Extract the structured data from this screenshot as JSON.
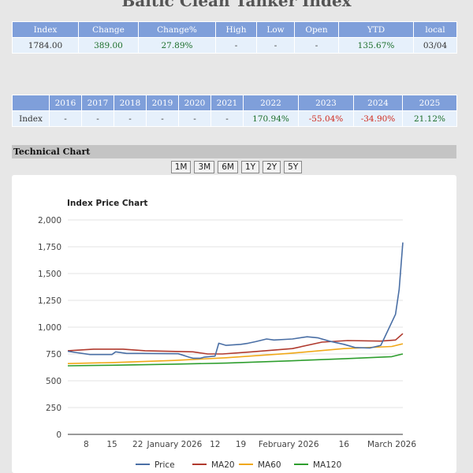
{
  "page": {
    "title": "Baltic Clean Tanker Index"
  },
  "quote": {
    "headers": [
      "Index",
      "Change",
      "Change%",
      "High",
      "Low",
      "Open",
      "YTD",
      "local"
    ],
    "values": [
      "1784.00",
      "389.00",
      "27.89%",
      "-",
      "-",
      "-",
      "135.67%",
      "03/04"
    ]
  },
  "yearly": {
    "headers": [
      "",
      "2016",
      "2017",
      "2018",
      "2019",
      "2020",
      "2021",
      "2022",
      "2023",
      "2024",
      "2025"
    ],
    "row_label": "Index",
    "values": [
      "-",
      "-",
      "-",
      "-",
      "-",
      "-",
      "170.94%",
      "-55.04%",
      "-34.90%",
      "21.12%"
    ]
  },
  "section": {
    "title": "Technical Chart"
  },
  "range_buttons": [
    "1M",
    "3M",
    "6M",
    "1Y",
    "2Y",
    "5Y"
  ],
  "colors": {
    "price": "#4a6fa5",
    "ma20": "#b03a2e",
    "ma60": "#f0a818",
    "ma120": "#2e9e2e",
    "header_bg": "#7f9fda",
    "positive": "#1b6e2a",
    "negative": "#d02a1d"
  },
  "chart_data": {
    "type": "line",
    "title": "Index Price Chart",
    "ylim": [
      0,
      2000
    ],
    "y_ticks": [
      0,
      250,
      500,
      750,
      1000,
      1250,
      1500,
      1750,
      2000
    ],
    "y_tick_labels": [
      "0",
      "250",
      "500",
      "750",
      "1,000",
      "1,250",
      "1,500",
      "1,750",
      "2,000"
    ],
    "x_tick_labels": [
      "8",
      "15",
      "22",
      "January 2026",
      "12",
      "19",
      "February 2026",
      "16",
      "March 2026"
    ],
    "x_tick_dates": [
      "2025-12-08",
      "2025-12-15",
      "2025-12-22",
      "2026-01-01",
      "2026-01-12",
      "2026-01-19",
      "2026-02-01",
      "2026-02-16",
      "2026-03-01"
    ],
    "x_range": [
      "2025-12-03",
      "2026-03-04"
    ],
    "legend_position": "bottom",
    "series": [
      {
        "name": "Price",
        "dates": [
          "2025-12-03",
          "2025-12-05",
          "2025-12-09",
          "2025-12-12",
          "2025-12-15",
          "2025-12-16",
          "2025-12-19",
          "2025-12-23",
          "2026-01-02",
          "2026-01-05",
          "2026-01-06",
          "2026-01-08",
          "2026-01-09",
          "2026-01-12",
          "2026-01-13",
          "2026-01-15",
          "2026-01-19",
          "2026-01-21",
          "2026-01-23",
          "2026-01-26",
          "2026-01-28",
          "2026-02-02",
          "2026-02-06",
          "2026-02-09",
          "2026-02-12",
          "2026-02-16",
          "2026-02-19",
          "2026-02-23",
          "2026-02-26",
          "2026-02-27",
          "2026-03-02",
          "2026-03-03",
          "2026-03-04"
        ],
        "values": [
          775,
          765,
          745,
          745,
          745,
          770,
          755,
          755,
          752,
          720,
          710,
          710,
          720,
          730,
          850,
          830,
          840,
          850,
          865,
          890,
          880,
          890,
          910,
          900,
          870,
          840,
          810,
          805,
          830,
          900,
          1120,
          1350,
          1790
        ]
      },
      {
        "name": "MA20",
        "dates": [
          "2025-12-03",
          "2025-12-10",
          "2025-12-18",
          "2025-12-24",
          "2026-01-06",
          "2026-01-10",
          "2026-01-14",
          "2026-01-22",
          "2026-02-02",
          "2026-02-10",
          "2026-02-17",
          "2026-02-26",
          "2026-03-02",
          "2026-03-04"
        ],
        "values": [
          780,
          795,
          795,
          780,
          770,
          750,
          750,
          770,
          800,
          860,
          875,
          870,
          880,
          940
        ]
      },
      {
        "name": "MA60",
        "dates": [
          "2025-12-03",
          "2025-12-15",
          "2026-01-01",
          "2026-01-15",
          "2026-02-01",
          "2026-02-16",
          "2026-03-01",
          "2026-03-04"
        ],
        "values": [
          660,
          670,
          690,
          715,
          755,
          800,
          820,
          845
        ]
      },
      {
        "name": "MA120",
        "dates": [
          "2025-12-03",
          "2025-12-15",
          "2026-01-01",
          "2026-01-15",
          "2026-02-01",
          "2026-02-16",
          "2026-03-01",
          "2026-03-04"
        ],
        "values": [
          640,
          645,
          655,
          665,
          685,
          705,
          725,
          750
        ]
      }
    ]
  }
}
